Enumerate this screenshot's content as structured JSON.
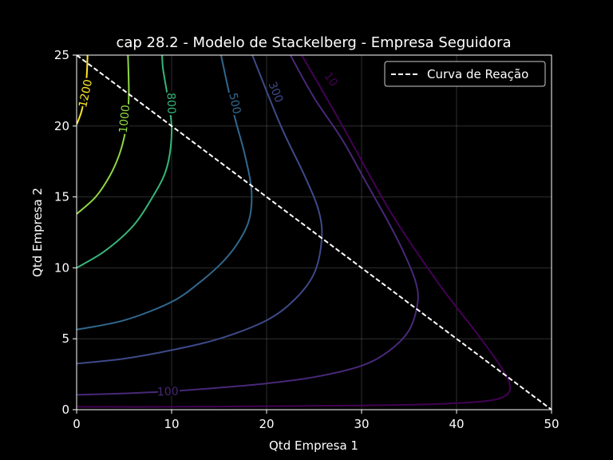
{
  "chart_data": {
    "type": "contour",
    "title": "cap 28.2 - Modelo de Stackelberg - Empresa Seguidora",
    "xlabel": "Qtd Empresa 1",
    "ylabel": "Qtd Empresa 2",
    "xlim": [
      0,
      50
    ],
    "ylim": [
      0,
      25
    ],
    "xticks": [
      "0",
      "10",
      "20",
      "30",
      "40",
      "50"
    ],
    "yticks": [
      "0",
      "5",
      "10",
      "15",
      "20",
      "25"
    ],
    "grid": true,
    "legend": {
      "placement": "top-right",
      "entries": [
        "Curva de Reação"
      ]
    },
    "reaction_curve": {
      "name": "Curva de Reação",
      "style": "dashed",
      "color": "#ffffff",
      "x": [
        0,
        50
      ],
      "y": [
        25,
        0
      ]
    },
    "contours": [
      {
        "level": 10,
        "label": "10",
        "color": "#440154",
        "points": [
          [
            23.7,
            25
          ],
          [
            28,
            20
          ],
          [
            33,
            14
          ],
          [
            38,
            9
          ],
          [
            42,
            5.5
          ],
          [
            44.5,
            3.2
          ],
          [
            45.6,
            1.8
          ],
          [
            45.2,
            1.0
          ],
          [
            43,
            0.6
          ],
          [
            38,
            0.4
          ],
          [
            30,
            0.3
          ],
          [
            20,
            0.25
          ],
          [
            10,
            0.2
          ],
          [
            0,
            0.2
          ]
        ]
      },
      {
        "level": 100,
        "label": "100",
        "color": "#482878",
        "points": [
          [
            0,
            1.05
          ],
          [
            5,
            1.15
          ],
          [
            10,
            1.3
          ],
          [
            15,
            1.55
          ],
          [
            20,
            1.85
          ],
          [
            25,
            2.3
          ],
          [
            30,
            3.1
          ],
          [
            33,
            4.2
          ],
          [
            35,
            5.6
          ],
          [
            35.9,
            7.5
          ],
          [
            35.7,
            9
          ],
          [
            34.5,
            11
          ],
          [
            33,
            13
          ],
          [
            30.5,
            16
          ],
          [
            28,
            19
          ],
          [
            25,
            22
          ],
          [
            22.5,
            25
          ]
        ]
      },
      {
        "level": 300,
        "label": "300",
        "color": "#3e4a89",
        "points": [
          [
            0,
            3.25
          ],
          [
            5,
            3.6
          ],
          [
            10,
            4.2
          ],
          [
            15,
            5
          ],
          [
            20,
            6.3
          ],
          [
            23,
            7.8
          ],
          [
            25,
            9.6
          ],
          [
            25.8,
            12
          ],
          [
            25.5,
            14
          ],
          [
            24,
            16.5
          ],
          [
            21.5,
            20
          ],
          [
            18.5,
            25
          ]
        ]
      },
      {
        "level": 500,
        "label": "500",
        "color": "#31688e",
        "points": [
          [
            0,
            5.65
          ],
          [
            5,
            6.3
          ],
          [
            10,
            7.6
          ],
          [
            13,
            9
          ],
          [
            15.5,
            10.5
          ],
          [
            17.2,
            12
          ],
          [
            18.2,
            13.5
          ],
          [
            18.4,
            15.5
          ],
          [
            17.7,
            18
          ],
          [
            16.5,
            21
          ],
          [
            15.2,
            25
          ]
        ]
      },
      {
        "level": 800,
        "label": "800",
        "color": "#35b779",
        "points": [
          [
            0,
            10
          ],
          [
            3,
            11.2
          ],
          [
            6,
            13
          ],
          [
            8,
            15
          ],
          [
            9.2,
            16.5
          ],
          [
            9.8,
            18
          ],
          [
            10,
            20
          ],
          [
            9.6,
            22
          ],
          [
            9.1,
            24
          ],
          [
            9,
            25
          ]
        ]
      },
      {
        "level": 1000,
        "label": "1000",
        "color": "#90d743",
        "points": [
          [
            0,
            13.8
          ],
          [
            2,
            15
          ],
          [
            3.5,
            16.5
          ],
          [
            4.5,
            18
          ],
          [
            5.1,
            19.5
          ],
          [
            5.4,
            21
          ],
          [
            5.5,
            22.5
          ],
          [
            5.4,
            25
          ]
        ]
      },
      {
        "level": 1200,
        "label": "1200",
        "color": "#fde725",
        "points": [
          [
            0,
            20.1
          ],
          [
            0.5,
            21
          ],
          [
            0.8,
            22
          ],
          [
            1,
            23
          ],
          [
            1.1,
            24
          ],
          [
            1.15,
            25
          ]
        ]
      }
    ]
  }
}
